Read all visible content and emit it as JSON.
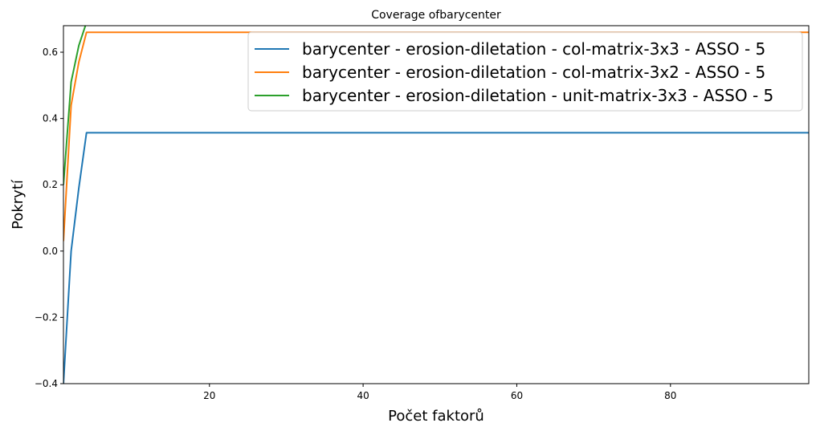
{
  "chart_data": {
    "type": "line",
    "title": "Coverage ofbarycenter",
    "xlabel": "Počet faktorů",
    "ylabel": "Pokrytí",
    "xlim": [
      1,
      98
    ],
    "ylim": [
      -0.4,
      0.68
    ],
    "grid": false,
    "legend_placement": "top-right",
    "x_ticks": [
      20,
      40,
      60,
      80
    ],
    "x_tick_labels": [
      "20",
      "40",
      "60",
      "80"
    ],
    "y_ticks": [
      -0.4,
      -0.2,
      0.0,
      0.2,
      0.4,
      0.6
    ],
    "y_tick_labels": [
      "−0.4",
      "−0.2",
      "0.0",
      "0.2",
      "0.4",
      "0.6"
    ],
    "series": [
      {
        "name": "barycenter - erosion-diletation - col-matrix-3x3 - ASSO - 5",
        "color": "#1f77b4",
        "points": [
          [
            1,
            -0.4
          ],
          [
            2,
            0.0
          ],
          [
            3,
            0.19
          ],
          [
            4,
            0.357
          ],
          [
            98,
            0.357
          ]
        ]
      },
      {
        "name": "barycenter - erosion-diletation - col-matrix-3x2 - ASSO - 5",
        "color": "#ff7f0e",
        "points": [
          [
            1,
            0.03
          ],
          [
            2,
            0.44
          ],
          [
            3,
            0.57
          ],
          [
            4,
            0.66
          ],
          [
            98,
            0.66
          ]
        ]
      },
      {
        "name": "barycenter - erosion-diletation - unit-matrix-3x3 - ASSO - 5",
        "color": "#2ca02c",
        "points": [
          [
            1,
            0.2
          ],
          [
            2,
            0.51
          ],
          [
            3,
            0.62
          ],
          [
            4,
            0.69
          ],
          [
            98,
            0.69
          ]
        ]
      }
    ]
  }
}
